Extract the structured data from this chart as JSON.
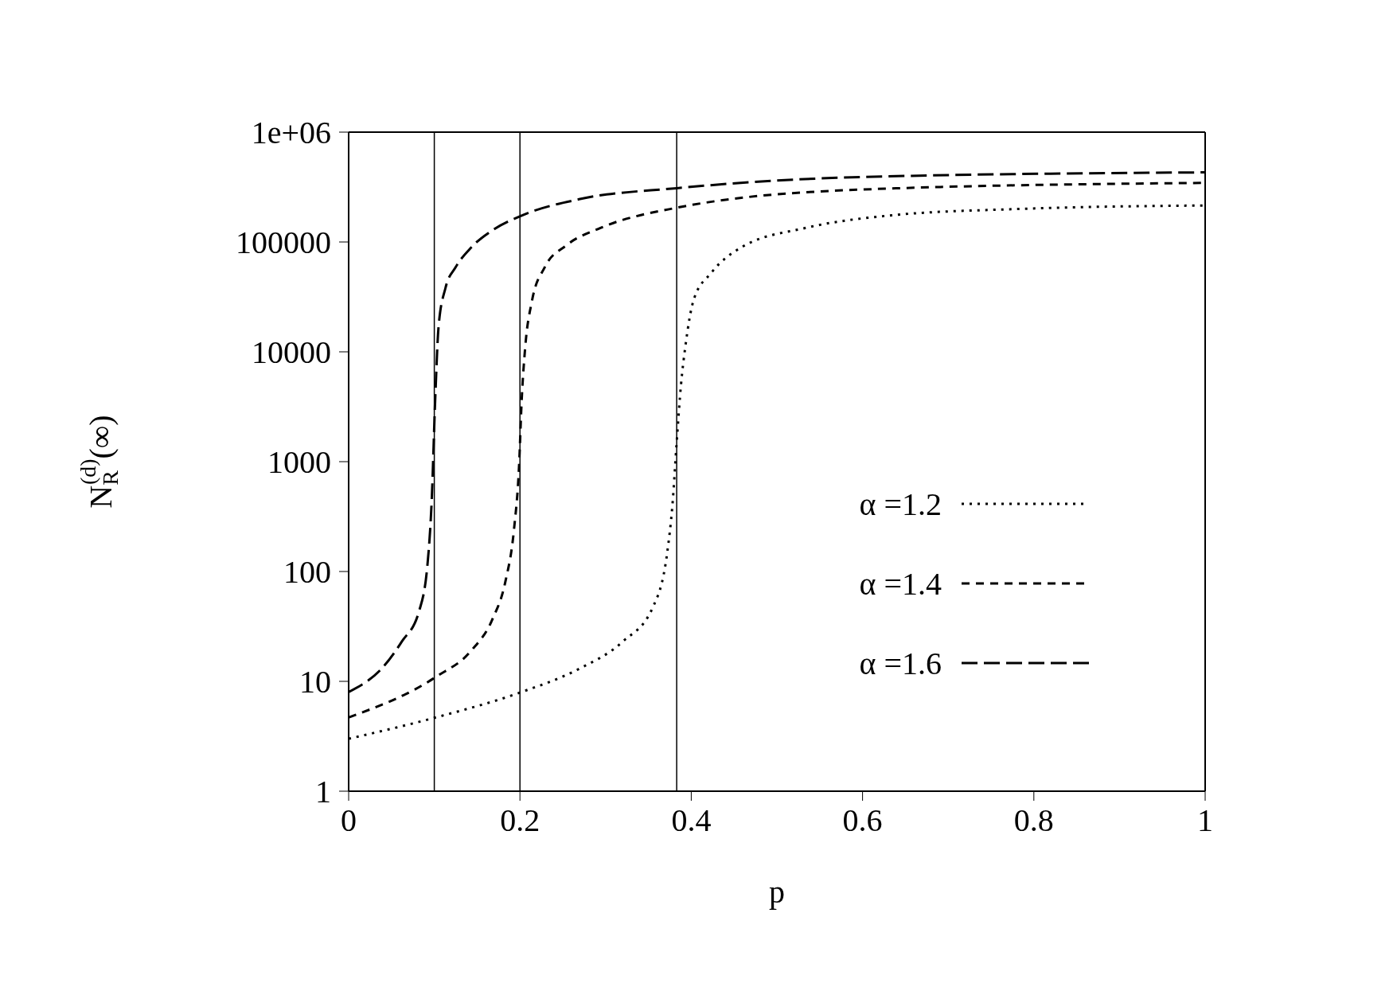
{
  "chart_data": {
    "type": "line",
    "xlabel": "p",
    "ylabel": "N$_{R}$$^{(d)}$(∞)",
    "log": "y",
    "xlim": [
      0,
      1
    ],
    "xticks": [
      0,
      0.2,
      0.4,
      0.6,
      0.8,
      1
    ],
    "ylim": [
      1,
      1000000
    ],
    "yticks": [
      1,
      10,
      100,
      1000,
      10000,
      100000,
      {
        "value": 1000000,
        "label": "1e+06"
      }
    ],
    "grid": false,
    "legend": "right",
    "marker": "none",
    "ref_lines": [
      {
        "axis": "x",
        "value": 0.1,
        "color": "#000000",
        "line_style": "solid"
      },
      {
        "axis": "x",
        "value": 0.2,
        "color": "#000000",
        "line_style": "solid"
      },
      {
        "axis": "x",
        "value": 0.383,
        "color": "#000000",
        "line_style": "solid"
      }
    ],
    "series": [
      {
        "name": "α =1.2",
        "color": "#000000",
        "line_style": "dotted",
        "x": [
          0,
          0.102,
          0.202,
          0.269,
          0.32,
          0.355,
          0.372,
          0.378,
          0.383,
          0.388,
          0.393,
          0.403,
          0.423,
          0.458,
          0.533,
          0.634,
          0.784,
          1
        ],
        "values": [
          3,
          4.7,
          8,
          13,
          23,
          47,
          150,
          400,
          1500,
          5000,
          11000,
          30000,
          52000,
          89000,
          134000,
          175000,
          200000,
          215000
        ]
      },
      {
        "name": "α =1.4",
        "color": "#000000",
        "line_style": "dashed",
        "x": [
          0,
          0.102,
          0.143,
          0.168,
          0.183,
          0.193,
          0.199,
          0.202,
          0.206,
          0.214,
          0.229,
          0.254,
          0.294,
          0.383,
          0.598,
          1
        ],
        "values": [
          4.7,
          11,
          19,
          37,
          81,
          240,
          930,
          3600,
          10700,
          29000,
          59000,
          93000,
          134000,
          205000,
          300000,
          345000
        ]
      },
      {
        "name": "α =1.6",
        "color": "#000000",
        "line_style": "dashed",
        "x": [
          0,
          0.042,
          0.062,
          0.082,
          0.092,
          0.097,
          0.101,
          0.105,
          0.113,
          0.125,
          0.143,
          0.168,
          0.202,
          0.269,
          0.383,
          0.598,
          1
        ],
        "values": [
          8,
          14,
          23,
          43,
          115,
          450,
          3600,
          17000,
          38000,
          59000,
          89000,
          128000,
          174000,
          245000,
          309000,
          390000,
          430000
        ]
      }
    ]
  }
}
